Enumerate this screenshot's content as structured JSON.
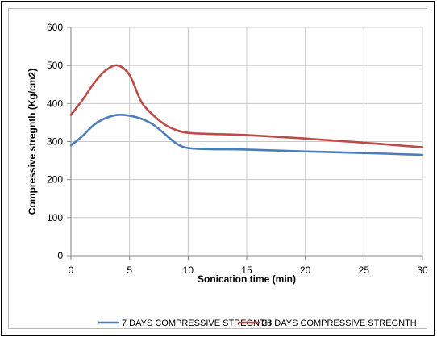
{
  "chart_data": {
    "type": "line",
    "title": "",
    "xlabel": "Sonication time (min)",
    "ylabel": "Compressive stregnth (Kg/cm2)",
    "xlim": [
      0,
      30
    ],
    "ylim": [
      0,
      600
    ],
    "xticks": [
      0,
      5,
      10,
      15,
      20,
      25,
      30
    ],
    "yticks": [
      0,
      100,
      200,
      300,
      400,
      500,
      600
    ],
    "grid": "vertical and horizontal major gridlines",
    "legend_position": "bottom",
    "series": [
      {
        "name": "7 DAYS COMPRESSIVE STREGNTH",
        "color": "#4a7ebb",
        "x": [
          0,
          1,
          2,
          3,
          4,
          5,
          6,
          7,
          8,
          9,
          10,
          12,
          15,
          20,
          25,
          30
        ],
        "y": [
          290,
          315,
          345,
          362,
          370,
          368,
          360,
          345,
          320,
          295,
          283,
          280,
          279,
          274,
          270,
          265
        ]
      },
      {
        "name": "28 DAYS COMPRESSIVE STREGNTH",
        "color": "#be4b48",
        "x": [
          0,
          1,
          2,
          3,
          4,
          5,
          6,
          7,
          8,
          9,
          10,
          12,
          15,
          20,
          25,
          30
        ],
        "y": [
          370,
          410,
          455,
          488,
          500,
          475,
          405,
          370,
          345,
          330,
          323,
          320,
          317,
          308,
          297,
          285
        ]
      }
    ]
  }
}
